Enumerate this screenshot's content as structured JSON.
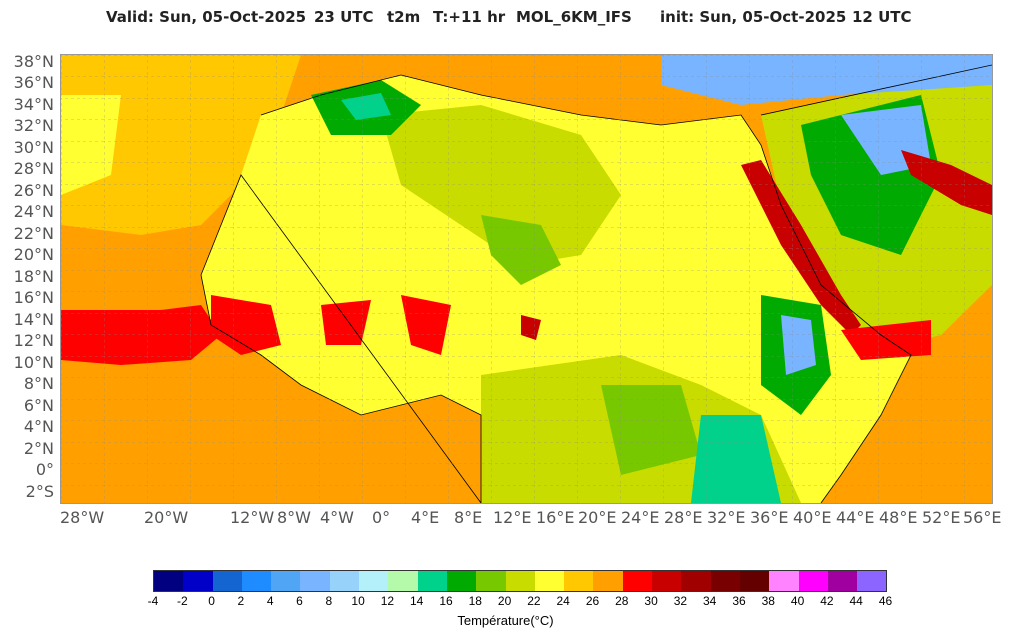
{
  "header": {
    "valid": "Valid: Sun, 05-Oct-2025",
    "valid_hour": "23 UTC",
    "param": "t2m",
    "step": "T:+11 hr",
    "model": "MOL_6KM_IFS",
    "init": "init: Sun, 05-Oct-2025",
    "init_hour": "12 UTC"
  },
  "map": {
    "lat_labels": [
      "38°N",
      "36°N",
      "34°N",
      "32°N",
      "30°N",
      "28°N",
      "26°N",
      "24°N",
      "22°N",
      "20°N",
      "18°N",
      "16°N",
      "14°N",
      "12°N",
      "10°N",
      "8°N",
      "6°N",
      "4°N",
      "2°N",
      "0°",
      "2°S"
    ],
    "lon_labels": [
      "28°W",
      "20°W",
      "12°W",
      "8°W",
      "4°W",
      "0°",
      "4°E",
      "8°E",
      "12°E",
      "16°E",
      "20°E",
      "24°E",
      "28°E",
      "32°E",
      "36°E",
      "40°E",
      "44°E",
      "48°E",
      "52°E",
      "56°E"
    ],
    "colors": {
      "ocean_warm": "#ffa000",
      "ocean_mid": "#ffc800",
      "desert": "#ffff32",
      "green_light": "#c8dc00",
      "green_mid": "#78c800",
      "green_dark": "#00aa00",
      "teal": "#00d28c",
      "hot": "#ff0000",
      "hotter": "#c80000",
      "cold_blue": "#78b4ff",
      "coast": "#000000"
    }
  },
  "colorbar": {
    "title": "Température(°C)",
    "ticks": [
      "-4",
      "-2",
      "0",
      "2",
      "4",
      "6",
      "8",
      "10",
      "12",
      "14",
      "16",
      "18",
      "20",
      "22",
      "24",
      "26",
      "28",
      "30",
      "32",
      "34",
      "36",
      "38",
      "40",
      "42",
      "44",
      "46"
    ],
    "colors": [
      "#000080",
      "#0000c8",
      "#1464d2",
      "#1e8cff",
      "#50a5f5",
      "#78b4ff",
      "#96d2fa",
      "#b4f0fa",
      "#b4faaa",
      "#00d28c",
      "#00aa00",
      "#78c800",
      "#c8dc00",
      "#ffff32",
      "#ffc800",
      "#ffa000",
      "#ff0000",
      "#c80000",
      "#a00000",
      "#780000",
      "#640000",
      "#ff82ff",
      "#ff00ff",
      "#a000a0",
      "#8c64ff"
    ]
  }
}
